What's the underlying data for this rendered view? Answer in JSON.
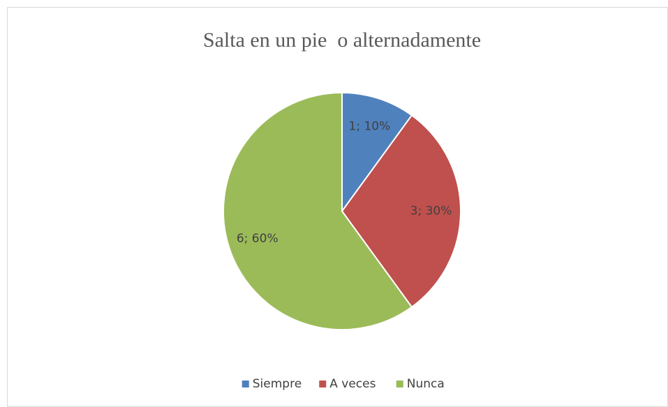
{
  "chart_data": {
    "type": "pie",
    "title": "Salta en un pie  o alternadamente",
    "categories": [
      "Siempre",
      "A veces",
      "Nunca"
    ],
    "values": [
      1,
      3,
      6
    ],
    "value_labels": [
      "1; 10%",
      "3; 30%",
      "6; 60%"
    ],
    "colors": [
      "#4f81bd",
      "#c0504d",
      "#9bbb59"
    ],
    "legend": "bottom"
  }
}
